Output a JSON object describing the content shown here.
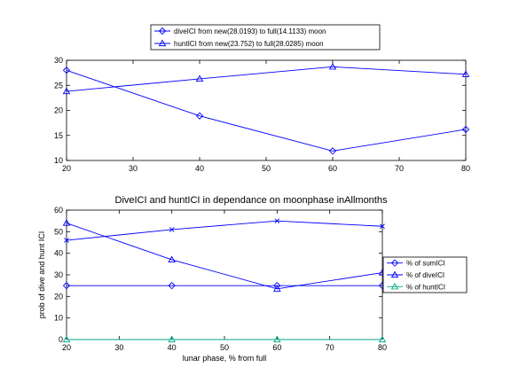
{
  "chart_data": [
    {
      "type": "line",
      "title": "",
      "xlabel": "",
      "ylabel": "",
      "xlim": [
        20,
        80
      ],
      "ylim": [
        10,
        30
      ],
      "xticks": [
        "20",
        "30",
        "40",
        "50",
        "60",
        "70",
        "80"
      ],
      "yticks": [
        "10",
        "15",
        "20",
        "25",
        "30"
      ],
      "grid": false,
      "legend": "top",
      "series": [
        {
          "name": "diveICI from new(28.0193) to full(14.1133) moon",
          "marker": "diamond",
          "color": "#0000ff",
          "x": [
            20,
            40,
            60,
            80
          ],
          "y": [
            28.0,
            18.9,
            11.9,
            16.2
          ]
        },
        {
          "name": "huntICI from new(23.752) to full(28.0285) moon",
          "marker": "triangle",
          "color": "#0000ff",
          "x": [
            20,
            40,
            60,
            80
          ],
          "y": [
            23.8,
            26.3,
            28.7,
            27.2
          ]
        }
      ]
    },
    {
      "type": "line",
      "title": "DiveICI and huntICI in dependance on moonphase inAllmonths",
      "xlabel": "lunar phase, % from full",
      "ylabel": "prob of dive and hunt ICI",
      "xlim": [
        20,
        80
      ],
      "ylim": [
        0,
        60
      ],
      "xticks": [
        "20",
        "30",
        "40",
        "50",
        "60",
        "70",
        "80"
      ],
      "yticks": [
        "0",
        "10",
        "20",
        "30",
        "40",
        "50",
        "60"
      ],
      "grid": false,
      "legend": "right",
      "series": [
        {
          "name": "% of sumICI",
          "marker": "diamond",
          "color": "#0000ff",
          "x": [
            20,
            40,
            60,
            80
          ],
          "y": [
            25,
            25,
            25,
            25
          ]
        },
        {
          "name": "% of diveICI",
          "marker": "triangle",
          "color": "#0000ff",
          "x": [
            20,
            40,
            60,
            80
          ],
          "y": [
            54,
            37,
            23.5,
            31
          ]
        },
        {
          "name": "% of huntICI",
          "marker": "triangle",
          "color": "#00aa88",
          "x": [
            20,
            40,
            60,
            80
          ],
          "y": [
            0,
            0,
            0,
            0
          ]
        },
        {
          "name": "",
          "marker": "x",
          "color": "#0000ff",
          "x": [
            20,
            40,
            60,
            80
          ],
          "y": [
            46,
            51,
            55,
            52.5
          ]
        }
      ]
    }
  ]
}
